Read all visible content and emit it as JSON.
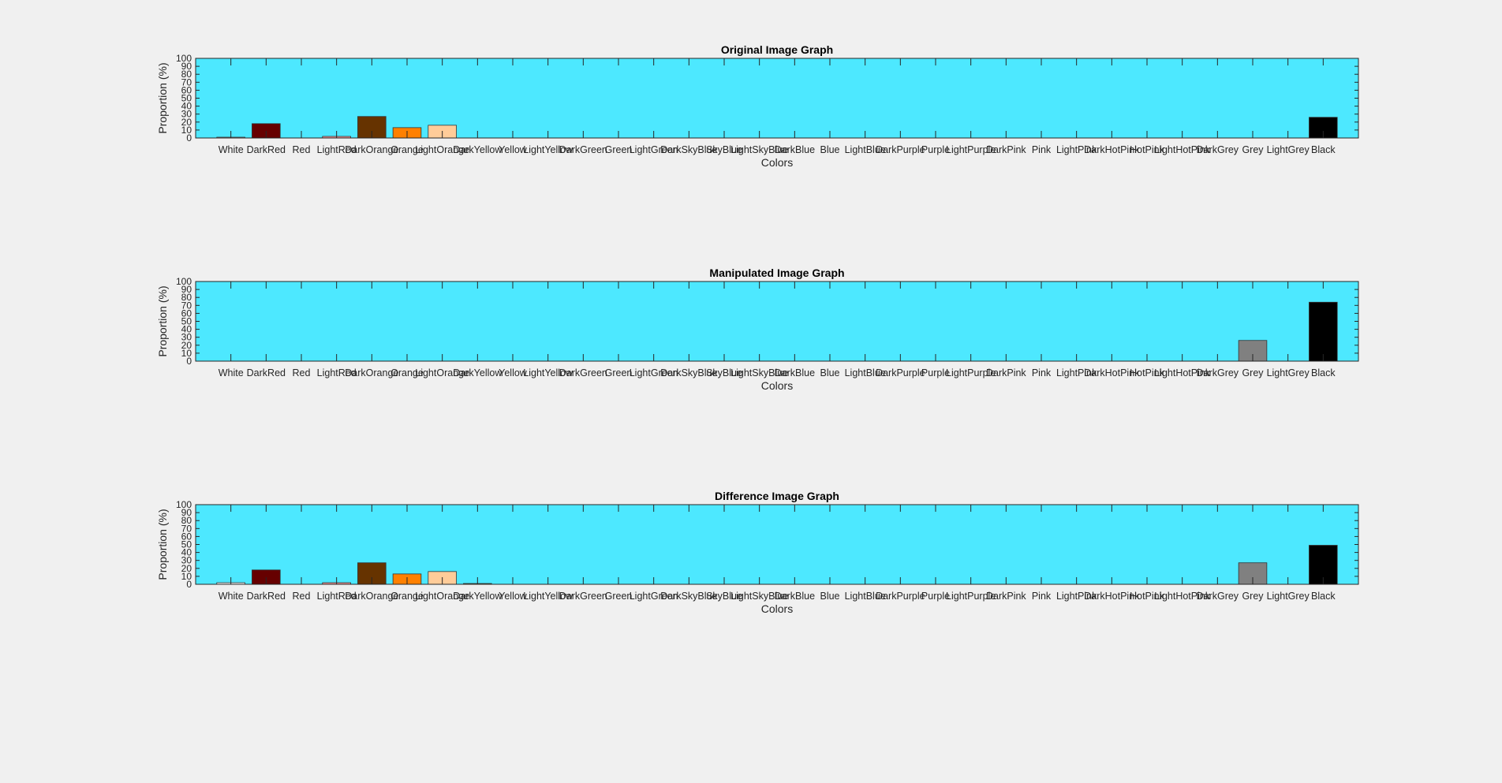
{
  "figure": {
    "background": "#f0f0f0",
    "axes_background": "#4de8ff"
  },
  "chart_data": [
    {
      "type": "bar",
      "title": "Original Image Graph",
      "xlabel": "Colors",
      "ylabel": "Proportion (%)",
      "ylim": [
        0,
        100
      ],
      "yticks": [
        0,
        10,
        20,
        30,
        40,
        50,
        60,
        70,
        80,
        90,
        100
      ],
      "grid": false,
      "categories": [
        "White",
        "DarkRed",
        "Red",
        "LightRed",
        "DarkOrange",
        "Orange",
        "LightOrange",
        "DarkYellow",
        "Yellow",
        "LightYellow",
        "DarkGreen",
        "Green",
        "LightGreen",
        "DarkSkyBlue",
        "SkyBlue",
        "LightSkyBlue",
        "DarkBlue",
        "Blue",
        "LightBlue",
        "DarkPurple",
        "Purple",
        "LightPurple",
        "DarkPink",
        "Pink",
        "LightPink",
        "DarkHotPink",
        "HotPink",
        "LightHotPink",
        "DarkGrey",
        "Grey",
        "LightGrey",
        "Black"
      ],
      "bar_colors": [
        "#ffffff",
        "#660000",
        "#ff0000",
        "#ff9999",
        "#663300",
        "#ff8000",
        "#ffcc99",
        "#666600",
        "#ffff00",
        "#ffff99",
        "#006600",
        "#00ff00",
        "#99ff99",
        "#006666",
        "#00ffff",
        "#99ffff",
        "#000066",
        "#0000ff",
        "#9999ff",
        "#330066",
        "#8000ff",
        "#cc99ff",
        "#660033",
        "#ff0080",
        "#ff99cc",
        "#660066",
        "#ff00ff",
        "#ff99ff",
        "#404040",
        "#808080",
        "#c0c0c0",
        "#000000"
      ],
      "values": [
        1,
        18,
        0,
        2,
        27,
        13,
        16,
        0,
        0,
        0,
        0,
        0,
        0,
        0,
        0,
        0,
        0,
        0,
        0,
        0,
        0,
        0,
        0,
        0,
        0,
        0,
        0,
        0,
        0,
        0,
        0,
        26
      ]
    },
    {
      "type": "bar",
      "title": "Manipulated Image Graph",
      "xlabel": "Colors",
      "ylabel": "Proportion (%)",
      "ylim": [
        0,
        100
      ],
      "yticks": [
        0,
        10,
        20,
        30,
        40,
        50,
        60,
        70,
        80,
        90,
        100
      ],
      "grid": false,
      "categories": [
        "White",
        "DarkRed",
        "Red",
        "LightRed",
        "DarkOrange",
        "Orange",
        "LightOrange",
        "DarkYellow",
        "Yellow",
        "LightYellow",
        "DarkGreen",
        "Green",
        "LightGreen",
        "DarkSkyBlue",
        "SkyBlue",
        "LightSkyBlue",
        "DarkBlue",
        "Blue",
        "LightBlue",
        "DarkPurple",
        "Purple",
        "LightPurple",
        "DarkPink",
        "Pink",
        "LightPink",
        "DarkHotPink",
        "HotPink",
        "LightHotPink",
        "DarkGrey",
        "Grey",
        "LightGrey",
        "Black"
      ],
      "bar_colors": [
        "#ffffff",
        "#660000",
        "#ff0000",
        "#ff9999",
        "#663300",
        "#ff8000",
        "#ffcc99",
        "#666600",
        "#ffff00",
        "#ffff99",
        "#006600",
        "#00ff00",
        "#99ff99",
        "#006666",
        "#00ffff",
        "#99ffff",
        "#000066",
        "#0000ff",
        "#9999ff",
        "#330066",
        "#8000ff",
        "#cc99ff",
        "#660033",
        "#ff0080",
        "#ff99cc",
        "#660066",
        "#ff00ff",
        "#ff99ff",
        "#404040",
        "#808080",
        "#c0c0c0",
        "#000000"
      ],
      "values": [
        0,
        0,
        0,
        0,
        0,
        0,
        0,
        0,
        0,
        0,
        0,
        0,
        0,
        0,
        0,
        0,
        0,
        0,
        0,
        0,
        0,
        0,
        0,
        0,
        0,
        0,
        0,
        0,
        0,
        26,
        0,
        74
      ]
    },
    {
      "type": "bar",
      "title": "Difference Image Graph",
      "xlabel": "Colors",
      "ylabel": "Proportion (%)",
      "ylim": [
        0,
        100
      ],
      "yticks": [
        0,
        10,
        20,
        30,
        40,
        50,
        60,
        70,
        80,
        90,
        100
      ],
      "grid": false,
      "categories": [
        "White",
        "DarkRed",
        "Red",
        "LightRed",
        "DarkOrange",
        "Orange",
        "LightOrange",
        "DarkYellow",
        "Yellow",
        "LightYellow",
        "DarkGreen",
        "Green",
        "LightGreen",
        "DarkSkyBlue",
        "SkyBlue",
        "LightSkyBlue",
        "DarkBlue",
        "Blue",
        "LightBlue",
        "DarkPurple",
        "Purple",
        "LightPurple",
        "DarkPink",
        "Pink",
        "LightPink",
        "DarkHotPink",
        "HotPink",
        "LightHotPink",
        "DarkGrey",
        "Grey",
        "LightGrey",
        "Black"
      ],
      "bar_colors": [
        "#ffffff",
        "#660000",
        "#ff0000",
        "#ff9999",
        "#663300",
        "#ff8000",
        "#ffcc99",
        "#666600",
        "#ffff00",
        "#ffff99",
        "#006600",
        "#00ff00",
        "#99ff99",
        "#006666",
        "#00ffff",
        "#99ffff",
        "#000066",
        "#0000ff",
        "#9999ff",
        "#330066",
        "#8000ff",
        "#cc99ff",
        "#660033",
        "#ff0080",
        "#ff99cc",
        "#660066",
        "#ff00ff",
        "#ff99ff",
        "#404040",
        "#808080",
        "#c0c0c0",
        "#000000"
      ],
      "values": [
        2,
        18,
        0,
        2,
        27,
        13,
        16,
        1,
        0,
        0,
        0,
        0,
        0,
        0,
        0,
        0,
        0,
        0,
        0,
        0,
        0,
        0,
        0,
        0,
        0,
        0,
        0,
        0,
        0,
        27,
        0,
        49
      ]
    }
  ]
}
